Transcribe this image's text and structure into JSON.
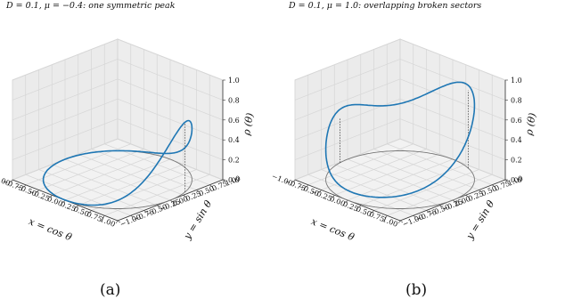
{
  "panels": [
    {
      "title": "D = 0.1, μ = −0.4: one symmetric peak",
      "caption": "(a)"
    },
    {
      "title": "D = 0.1, μ = 1.0: overlapping broken sectors",
      "caption": "(b)"
    }
  ],
  "chart_data": [
    {
      "type": "line",
      "projection": "3d",
      "title": "D = 0.1, μ = −0.4: one symmetric peak",
      "xlabel": "x = cos θ",
      "ylabel": "y = sin θ",
      "zlabel": "ρ (θ)",
      "xlim": [
        -1.0,
        1.0
      ],
      "ylim": [
        -1.0,
        1.0
      ],
      "zlim": [
        0.0,
        1.0
      ],
      "xticks": [
        "−1.00",
        "−0.75",
        "−0.50",
        "−0.25",
        "0.00",
        "0.25",
        "0.50",
        "0.75",
        "1.00"
      ],
      "yticks": [
        "−1.00",
        "−0.75",
        "−0.50",
        "−0.25",
        "0.00",
        "0.25",
        "0.50",
        "0.75",
        "1.00"
      ],
      "zticks": [
        "0.0",
        "0.2",
        "0.4",
        "0.6",
        "0.8",
        "1.0"
      ],
      "grid": true,
      "series": [
        {
          "kind": "unit-circle",
          "z": 0.0,
          "color": "#777777"
        },
        {
          "kind": "density-curve",
          "color": "#1f77b4",
          "peaks": [
            {
              "theta": 0.35,
              "height": 0.7,
              "width": 0.55
            }
          ],
          "baseline": 0.0
        },
        {
          "kind": "peak-marker",
          "theta": 0.35,
          "height": 0.7,
          "color": "#444444"
        }
      ]
    },
    {
      "type": "line",
      "projection": "3d",
      "title": "D = 0.1, μ = 1.0: overlapping broken sectors",
      "xlabel": "x = cos θ",
      "ylabel": "y = sin θ",
      "zlabel": "ρ (θ)",
      "xlim": [
        -1.0,
        1.0
      ],
      "ylim": [
        -1.0,
        1.0
      ],
      "zlim": [
        0.0,
        1.0
      ],
      "xticks": [
        "−1.00",
        "−0.75",
        "−0.50",
        "−0.25",
        "0.00",
        "0.25",
        "0.50",
        "0.75",
        "1.00"
      ],
      "yticks": [
        "−1.00",
        "−0.75",
        "−0.50",
        "−0.25",
        "0.00",
        "0.25",
        "0.50",
        "0.75",
        "1.00"
      ],
      "zticks": [
        "0.0",
        "0.2",
        "0.4",
        "0.6",
        "0.8",
        "1.0"
      ],
      "grid": true,
      "series": [
        {
          "kind": "unit-circle",
          "z": 0.0,
          "color": "#777777"
        },
        {
          "kind": "density-curve",
          "color": "#1f77b4",
          "peaks": [
            {
              "theta": 1.2,
              "height": 0.75,
              "width": 0.85
            },
            {
              "theta": 3.3,
              "height": 0.42,
              "width": 0.55
            }
          ],
          "baseline": 0.08
        },
        {
          "kind": "peak-marker",
          "theta": 1.2,
          "height": 0.78,
          "color": "#444444"
        },
        {
          "kind": "peak-marker",
          "theta": 3.3,
          "height": 0.45,
          "color": "#444444"
        }
      ]
    }
  ]
}
